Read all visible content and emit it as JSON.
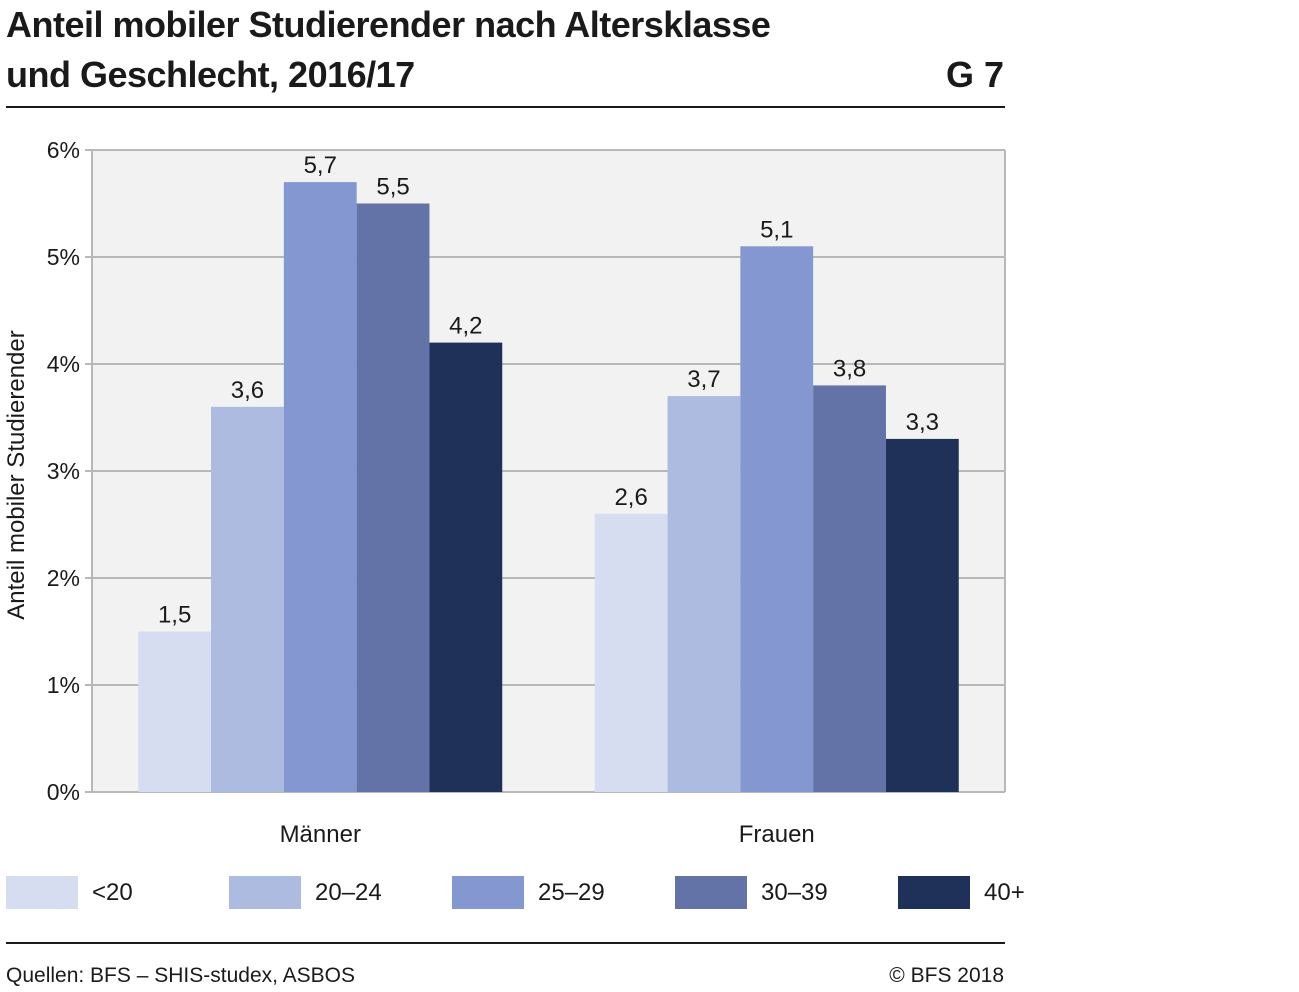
{
  "header": {
    "title": "Anteil mobiler Studierender nach Altersklasse und Geschlecht, 2016/17",
    "code": "G 7"
  },
  "footer": {
    "source": "Quellen: BFS – SHIS-studex, ASBOS",
    "copyright": "© BFS 2018"
  },
  "chart_data": {
    "type": "bar",
    "categories": [
      "Männer",
      "Frauen"
    ],
    "series": [
      {
        "name": "<20",
        "values": [
          1.5,
          2.6
        ],
        "labels": [
          "1,5",
          "2,6"
        ],
        "color": "#d7ddf0"
      },
      {
        "name": "20–24",
        "values": [
          3.6,
          3.7
        ],
        "labels": [
          "3,6",
          "3,7"
        ],
        "color": "#adbbe0"
      },
      {
        "name": "25–29",
        "values": [
          5.7,
          5.1
        ],
        "labels": [
          "5,7",
          "5,1"
        ],
        "color": "#8497d0"
      },
      {
        "name": "30–39",
        "values": [
          5.5,
          3.8
        ],
        "labels": [
          "5,5",
          "3,8"
        ],
        "color": "#6373a8"
      },
      {
        "name": "40+",
        "values": [
          4.2,
          3.3
        ],
        "labels": [
          "4,2",
          "3,3"
        ],
        "color": "#1f3158"
      }
    ],
    "ylabel": "Anteil mobiler Studierender",
    "ylim": [
      0,
      6
    ],
    "yticks": [
      0,
      1,
      2,
      3,
      4,
      5,
      6
    ],
    "ytick_labels": [
      "0%",
      "1%",
      "2%",
      "3%",
      "4%",
      "5%",
      "6%"
    ],
    "grid": true,
    "plot_background": "#f2f2f2",
    "legend_position": "bottom"
  }
}
